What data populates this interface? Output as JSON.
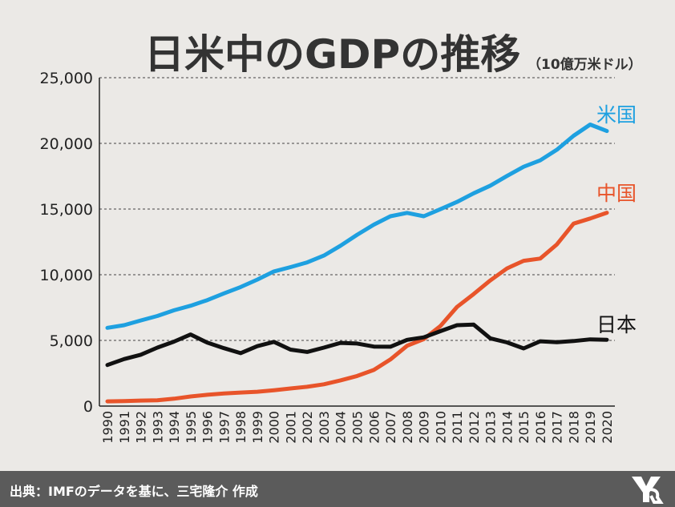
{
  "header": {
    "title": "日米中のGDPの推移",
    "unit": "（10億万米ドル）"
  },
  "footer": {
    "source": "出典：IMFのデータを基に、三宅隆介 作成"
  },
  "colors": {
    "background": "#ebe9e6",
    "us": "#1ea0e0",
    "china": "#e8542a",
    "japan": "#111111",
    "footer": "#5b5b5b"
  },
  "chart_data": {
    "type": "line",
    "x": [
      1990,
      1991,
      1992,
      1993,
      1994,
      1995,
      1996,
      1997,
      1998,
      1999,
      2000,
      2001,
      2002,
      2003,
      2004,
      2005,
      2006,
      2007,
      2008,
      2009,
      2010,
      2011,
      2012,
      2013,
      2014,
      2015,
      2016,
      2017,
      2018,
      2019,
      2020
    ],
    "x_tick_labels": [
      "1990",
      "1991",
      "1992",
      "1993",
      "1994",
      "1995",
      "1996",
      "1997",
      "1998",
      "1999",
      "2000",
      "2001",
      "2002",
      "2003",
      "2004",
      "2005",
      "2006",
      "2007",
      "2008",
      "2009",
      "2010",
      "2011",
      "2012",
      "2013",
      "2014",
      "2015",
      "2016",
      "2017",
      "2018",
      "2019",
      "2020"
    ],
    "ylim": [
      0,
      25000
    ],
    "y_ticks": [
      0,
      5000,
      10000,
      15000,
      20000,
      25000
    ],
    "y_tick_labels": [
      "0",
      "5,000",
      "10,000",
      "15,000",
      "20,000",
      "25,000"
    ],
    "grid": "horizontal dashed",
    "series": [
      {
        "name": "米国",
        "color": "#1ea0e0",
        "values": [
          5960,
          6160,
          6520,
          6860,
          7290,
          7640,
          8070,
          8580,
          9060,
          9630,
          10250,
          10580,
          10940,
          11460,
          12210,
          13040,
          13810,
          14450,
          14710,
          14450,
          14990,
          15540,
          16200,
          16780,
          17520,
          18220,
          18710,
          19520,
          20580,
          21430,
          20940
        ]
      },
      {
        "name": "中国",
        "color": "#e8542a",
        "values": [
          360,
          380,
          420,
          440,
          560,
          730,
          860,
          960,
          1030,
          1090,
          1210,
          1340,
          1470,
          1660,
          1960,
          2290,
          2750,
          3550,
          4590,
          5100,
          6090,
          7550,
          8530,
          9570,
          10480,
          11060,
          11230,
          12310,
          13890,
          14280,
          14720
        ]
      },
      {
        "name": "日本",
        "color": "#111111",
        "values": [
          3130,
          3580,
          3910,
          4450,
          4910,
          5450,
          4830,
          4410,
          4030,
          4560,
          4890,
          4300,
          4120,
          4450,
          4810,
          4760,
          4530,
          4520,
          5040,
          5230,
          5700,
          6160,
          6200,
          5160,
          4850,
          4390,
          4930,
          4860,
          4950,
          5080,
          5050
        ]
      }
    ]
  }
}
